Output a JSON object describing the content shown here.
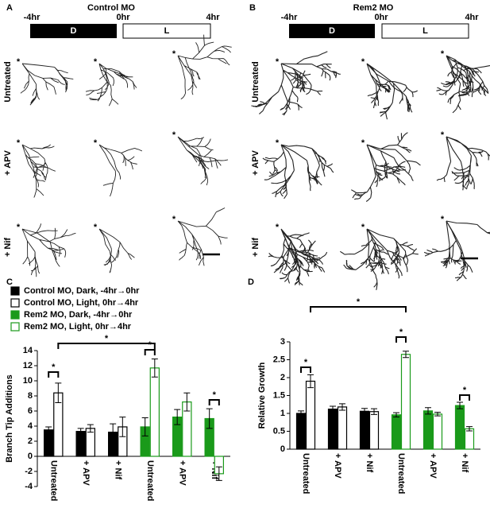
{
  "neuron_panels": [
    {
      "letter": "A",
      "title": "Control MO",
      "times": [
        "-4hr",
        "0hr",
        "4hr"
      ],
      "phases": [
        "D",
        "L"
      ],
      "rows": [
        "Untreated",
        "+ APV",
        "+ Nif"
      ],
      "marker": "*"
    },
    {
      "letter": "B",
      "title": "Rem2 MO",
      "times": [
        "-4hr",
        "0hr",
        "4hr"
      ],
      "phases": [
        "D",
        "L"
      ],
      "rows": [
        "Untreated",
        "+ APV",
        "+ Nif"
      ],
      "marker": "*"
    }
  ],
  "chart_data": [
    {
      "type": "bar",
      "letter": "C",
      "ylabel": "Branch Tip Additions",
      "categories": [
        "Untreated",
        "+ APV",
        "+ Nif",
        "Untreated",
        "+ APV",
        "+ Nif"
      ],
      "series": [
        {
          "name": "Control MO, Dark, -4hr→0hr",
          "color": "#000000",
          "fill": "#000000",
          "values": [
            3.5,
            3.3,
            3.2,
            null,
            null,
            null
          ],
          "errors": [
            0.4,
            0.4,
            1.1,
            null,
            null,
            null
          ]
        },
        {
          "name": "Control MO, Light, 0hr→4hr",
          "color": "#000000",
          "fill": "#ffffff",
          "values": [
            8.4,
            3.7,
            3.9,
            null,
            null,
            null
          ],
          "errors": [
            1.3,
            0.5,
            1.3,
            null,
            null,
            null
          ]
        },
        {
          "name": "Rem2 MO, Dark, -4hr→0hr",
          "color": "#1a9a1a",
          "fill": "#1a9a1a",
          "values": [
            null,
            null,
            null,
            3.9,
            5.2,
            5.0
          ],
          "errors": [
            null,
            null,
            null,
            1.2,
            1.0,
            1.3
          ]
        },
        {
          "name": "Rem2 MO, Light, 0hr→4hr",
          "color": "#1a9a1a",
          "fill": "#ffffff",
          "values": [
            null,
            null,
            null,
            11.7,
            7.2,
            -2.3
          ],
          "errors": [
            null,
            null,
            null,
            1.2,
            1.2,
            0.9
          ]
        }
      ],
      "ylim": [
        -4,
        14
      ],
      "yticks": [
        -4,
        -2,
        0,
        2,
        4,
        6,
        8,
        10,
        12,
        14
      ],
      "grid": false,
      "legend": "top",
      "annotations": [
        "*",
        "*",
        "*",
        "*"
      ]
    },
    {
      "type": "bar",
      "letter": "D",
      "ylabel": "Relative Growth",
      "categories": [
        "Untreated",
        "+ APV",
        "+ Nif",
        "Untreated",
        "+ APV",
        "+ Nif"
      ],
      "series": [
        {
          "color": "#000000",
          "fill": "#000000",
          "values": [
            1.0,
            1.12,
            1.06,
            null,
            null,
            null
          ],
          "errors": [
            0.07,
            0.08,
            0.08,
            null,
            null,
            null
          ]
        },
        {
          "color": "#000000",
          "fill": "#ffffff",
          "values": [
            1.9,
            1.18,
            1.05,
            null,
            null,
            null
          ],
          "errors": [
            0.18,
            0.09,
            0.08,
            null,
            null,
            null
          ]
        },
        {
          "color": "#1a9a1a",
          "fill": "#1a9a1a",
          "values": [
            null,
            null,
            null,
            0.96,
            1.07,
            1.22
          ],
          "errors": [
            null,
            null,
            null,
            0.06,
            0.09,
            0.09
          ]
        },
        {
          "color": "#1a9a1a",
          "fill": "#ffffff",
          "values": [
            null,
            null,
            null,
            2.65,
            0.98,
            0.57
          ],
          "errors": [
            null,
            null,
            null,
            0.09,
            0.05,
            0.06
          ]
        }
      ],
      "ylim": [
        0,
        3
      ],
      "yticks": [
        0,
        0.5,
        1,
        1.5,
        2,
        2.5,
        3
      ],
      "grid": false,
      "annotations": [
        "*",
        "*",
        "*",
        "*"
      ]
    }
  ]
}
